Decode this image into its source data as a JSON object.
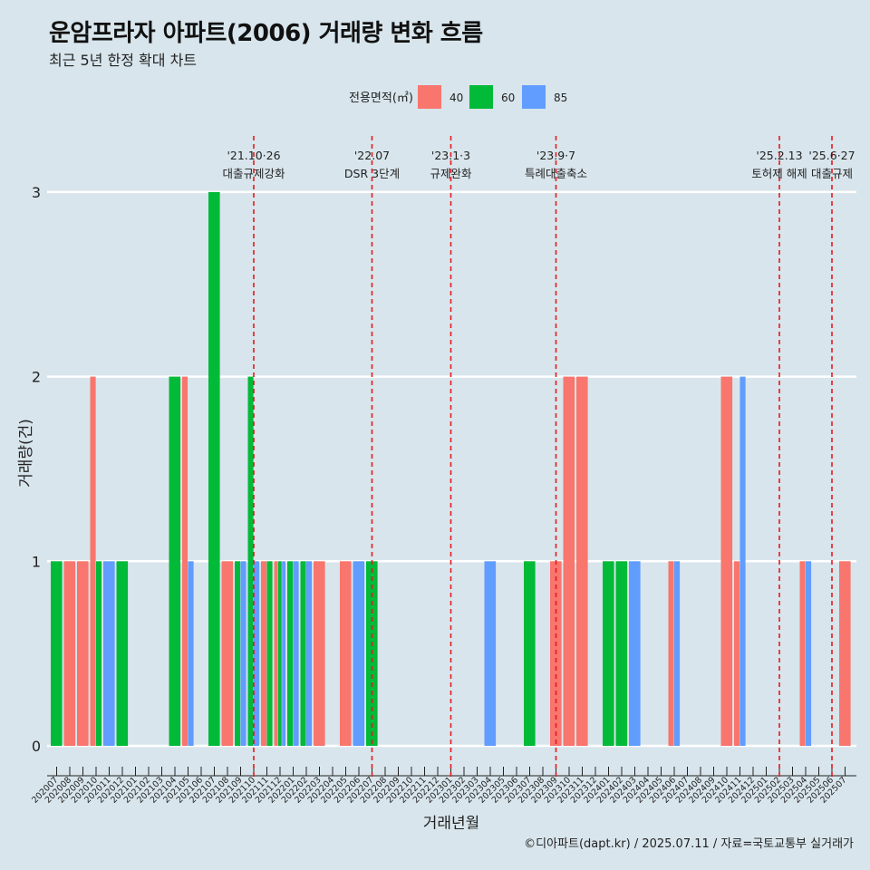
{
  "chart_data": {
    "type": "bar",
    "title": "운암프라자 아파트(2006) 거래량 변화 흐름",
    "subtitle": "최근 5년 한정 확대 차트",
    "xlabel": "거래년월",
    "ylabel": "거래량(건)",
    "caption": "©디아파트(dapt.kr) / 2025.07.11 / 자료=국토교통부 실거래가",
    "ylim": [
      0,
      3
    ],
    "yticks": [
      "0",
      "1",
      "2",
      "3"
    ],
    "legend": {
      "title": "전용면적(㎡)",
      "position": "top",
      "items": [
        {
          "label": "40",
          "color": "#f8766d"
        },
        {
          "label": "60",
          "color": "#00ba38"
        },
        {
          "label": "85",
          "color": "#619cff"
        }
      ]
    },
    "categories": [
      "202007",
      "202008",
      "202009",
      "202010",
      "202011",
      "202012",
      "202101",
      "202102",
      "202103",
      "202104",
      "202105",
      "202106",
      "202107",
      "202108",
      "202109",
      "202110",
      "202111",
      "202112",
      "202201",
      "202202",
      "202203",
      "202204",
      "202205",
      "202206",
      "202207",
      "202208",
      "202209",
      "202210",
      "202211",
      "202212",
      "202301",
      "202302",
      "202303",
      "202304",
      "202305",
      "202306",
      "202307",
      "202308",
      "202309",
      "202310",
      "202311",
      "202312",
      "202401",
      "202402",
      "202403",
      "202404",
      "202405",
      "202406",
      "202407",
      "202408",
      "202409",
      "202410",
      "202411",
      "202412",
      "202501",
      "202502",
      "202503",
      "202504",
      "202505",
      "202506",
      "202507"
    ],
    "series": [
      {
        "name": "40",
        "color": "#f8766d",
        "values": [
          0,
          1,
          1,
          2,
          0,
          0,
          0,
          0,
          0,
          0,
          2,
          0,
          0,
          1,
          0,
          0,
          1,
          1,
          0,
          0,
          1,
          0,
          1,
          0,
          0,
          0,
          0,
          0,
          0,
          0,
          0,
          0,
          0,
          0,
          0,
          0,
          0,
          0,
          1,
          2,
          2,
          0,
          0,
          0,
          0,
          0,
          0,
          1,
          0,
          0,
          0,
          2,
          1,
          0,
          0,
          0,
          0,
          1,
          0,
          0,
          1
        ]
      },
      {
        "name": "60",
        "color": "#00ba38",
        "values": [
          1,
          0,
          0,
          1,
          0,
          1,
          0,
          0,
          0,
          2,
          0,
          0,
          3,
          0,
          1,
          2,
          1,
          1,
          1,
          1,
          0,
          0,
          0,
          0,
          1,
          0,
          0,
          0,
          0,
          0,
          0,
          0,
          0,
          0,
          0,
          0,
          1,
          0,
          0,
          0,
          0,
          0,
          1,
          1,
          0,
          0,
          0,
          0,
          0,
          0,
          0,
          0,
          0,
          0,
          0,
          0,
          0,
          0,
          0,
          0,
          0
        ]
      },
      {
        "name": "85",
        "color": "#619cff",
        "values": [
          0,
          0,
          0,
          0,
          1,
          0,
          0,
          0,
          0,
          0,
          1,
          0,
          0,
          0,
          1,
          1,
          0,
          1,
          1,
          1,
          0,
          0,
          0,
          1,
          0,
          0,
          0,
          0,
          0,
          0,
          0,
          0,
          0,
          1,
          0,
          0,
          0,
          0,
          0,
          0,
          0,
          0,
          0,
          0,
          1,
          0,
          0,
          1,
          0,
          0,
          0,
          0,
          2,
          0,
          0,
          0,
          0,
          1,
          0,
          0,
          0
        ]
      }
    ],
    "annotations": [
      {
        "x": "202110",
        "date": "'21.10·26",
        "label": "대출규제강화"
      },
      {
        "x": "202207",
        "date": "'22.07",
        "label": "DSR 3단계"
      },
      {
        "x": "202301",
        "date": "'23.1·3",
        "label": "규제완화"
      },
      {
        "x": "202309",
        "date": "'23.9·7",
        "label": "특례대출축소"
      },
      {
        "x": "202502",
        "date": "'25.2.13",
        "label": "토허제 해제"
      },
      {
        "x": "202506",
        "date": "'25.6·27",
        "label": "대출규제"
      }
    ]
  }
}
